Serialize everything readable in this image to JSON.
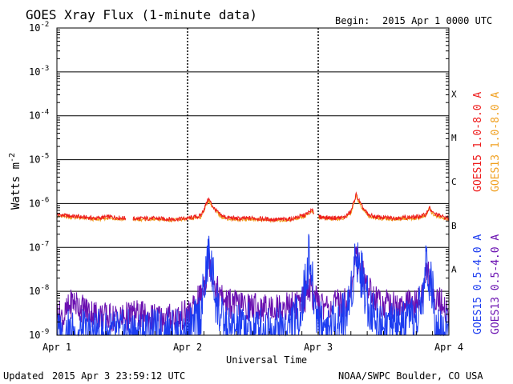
{
  "chart_data": {
    "type": "line",
    "title": "GOES Xray Flux (1-minute data)",
    "begin_label": "Begin:",
    "begin_value": "2015 Apr 1 0000 UTC",
    "xlabel": "Universal Time",
    "ylabel": "Watts m",
    "ylabel_sup": "-2",
    "y_scale": "log",
    "ylim": [
      1e-09,
      0.01
    ],
    "xlim": [
      0,
      3
    ],
    "x_tick_labels": [
      "Apr 1",
      "Apr 2",
      "Apr 3",
      "Apr 4"
    ],
    "x_ticks": [
      0,
      1,
      2,
      3
    ],
    "y_ticks": [
      {
        "value": 0.01,
        "base": "10",
        "exp": "-2"
      },
      {
        "value": 0.001,
        "base": "10",
        "exp": "-3"
      },
      {
        "value": 0.0001,
        "base": "10",
        "exp": "-4"
      },
      {
        "value": 1e-05,
        "base": "10",
        "exp": "-5"
      },
      {
        "value": 1e-06,
        "base": "10",
        "exp": "-6"
      },
      {
        "value": 1e-07,
        "base": "10",
        "exp": "-7"
      },
      {
        "value": 1e-08,
        "base": "10",
        "exp": "-8"
      },
      {
        "value": 1e-09,
        "base": "10",
        "exp": "-9"
      }
    ],
    "flare_classes": [
      {
        "label": "X",
        "min": 0.0001,
        "max": 0.001
      },
      {
        "label": "M",
        "min": 1e-05,
        "max": 0.0001
      },
      {
        "label": "C",
        "min": 1e-06,
        "max": 1e-05
      },
      {
        "label": "B",
        "min": 1e-07,
        "max": 1e-06
      },
      {
        "label": "A",
        "min": 1e-08,
        "max": 1e-07
      }
    ],
    "grid": true,
    "series": [
      {
        "name": "GOES15 1.0-8.0 A",
        "color": "#ee1c1c",
        "points": [
          [
            0,
            5.6e-07
          ],
          [
            0.1,
            5.2e-07
          ],
          [
            0.2,
            4.9e-07
          ],
          [
            0.3,
            4.6e-07
          ],
          [
            0.4,
            5e-07
          ],
          [
            0.5,
            4.7e-07
          ],
          [
            0.6,
            4.5e-07
          ],
          [
            0.7,
            4.6e-07
          ],
          [
            0.8,
            4.5e-07
          ],
          [
            0.9,
            4.4e-07
          ],
          [
            1.0,
            4.6e-07
          ],
          [
            1.05,
            4.9e-07
          ],
          [
            1.1,
            5.2e-07
          ],
          [
            1.13,
            8e-07
          ],
          [
            1.16,
            1.3e-06
          ],
          [
            1.2,
            8e-07
          ],
          [
            1.25,
            5.5e-07
          ],
          [
            1.3,
            4.8e-07
          ],
          [
            1.4,
            4.5e-07
          ],
          [
            1.5,
            4.7e-07
          ],
          [
            1.6,
            4.4e-07
          ],
          [
            1.7,
            4.3e-07
          ],
          [
            1.8,
            4.5e-07
          ],
          [
            1.9,
            5.5e-07
          ],
          [
            1.95,
            7e-07
          ],
          [
            2.0,
            5e-07
          ],
          [
            2.1,
            4.7e-07
          ],
          [
            2.2,
            4.8e-07
          ],
          [
            2.25,
            6.5e-07
          ],
          [
            2.29,
            1.6e-06
          ],
          [
            2.33,
            9e-07
          ],
          [
            2.38,
            5.5e-07
          ],
          [
            2.45,
            4.9e-07
          ],
          [
            2.55,
            4.7e-07
          ],
          [
            2.65,
            4.8e-07
          ],
          [
            2.75,
            4.9e-07
          ],
          [
            2.82,
            5.5e-07
          ],
          [
            2.85,
            8e-07
          ],
          [
            2.88,
            6e-07
          ],
          [
            2.95,
            5e-07
          ],
          [
            3.0,
            4.6e-07
          ]
        ],
        "gaps": [
          [
            0.53,
            0.58
          ],
          [
            1.97,
            2.0
          ]
        ]
      },
      {
        "name": "GOES13 1.0-8.0 A",
        "color": "#f0a020",
        "points": [
          [
            0,
            5.2e-07
          ],
          [
            0.1,
            4.9e-07
          ],
          [
            0.2,
            4.6e-07
          ],
          [
            0.3,
            4.3e-07
          ],
          [
            0.4,
            4.7e-07
          ],
          [
            0.5,
            4.4e-07
          ],
          [
            0.6,
            4.3e-07
          ],
          [
            0.7,
            4.4e-07
          ],
          [
            0.8,
            4.3e-07
          ],
          [
            0.9,
            4.2e-07
          ],
          [
            1.0,
            4.4e-07
          ],
          [
            1.05,
            4.6e-07
          ],
          [
            1.1,
            4.9e-07
          ],
          [
            1.13,
            7.5e-07
          ],
          [
            1.16,
            1.2e-06
          ],
          [
            1.2,
            7.6e-07
          ],
          [
            1.25,
            5.2e-07
          ],
          [
            1.3,
            4.5e-07
          ],
          [
            1.4,
            4.3e-07
          ],
          [
            1.5,
            4.4e-07
          ],
          [
            1.6,
            4.2e-07
          ],
          [
            1.7,
            4.1e-07
          ],
          [
            1.8,
            4.3e-07
          ],
          [
            1.9,
            5.2e-07
          ],
          [
            1.95,
            6.6e-07
          ],
          [
            2.0,
            4.8e-07
          ],
          [
            2.1,
            4.4e-07
          ],
          [
            2.2,
            4.6e-07
          ],
          [
            2.25,
            6.1e-07
          ],
          [
            2.29,
            1.5e-06
          ],
          [
            2.33,
            8.6e-07
          ],
          [
            2.38,
            5.2e-07
          ],
          [
            2.45,
            4.6e-07
          ],
          [
            2.55,
            4.4e-07
          ],
          [
            2.65,
            4.5e-07
          ],
          [
            2.75,
            4.6e-07
          ],
          [
            2.82,
            5.2e-07
          ],
          [
            2.85,
            7.6e-07
          ],
          [
            2.88,
            5.6e-07
          ],
          [
            2.95,
            4.7e-07
          ],
          [
            3.0,
            4.3e-07
          ]
        ],
        "gaps": [
          [
            0.53,
            0.58
          ],
          [
            1.97,
            2.0
          ]
        ]
      },
      {
        "name": "GOES15 0.5-4.0 A",
        "color": "#1c3cf0",
        "points": [
          [
            0,
            1e-09
          ],
          [
            0.2,
            1e-09
          ],
          [
            0.4,
            1e-09
          ],
          [
            0.6,
            1e-09
          ],
          [
            0.8,
            1e-09
          ],
          [
            0.95,
            1e-09
          ],
          [
            1.05,
            1.5e-09
          ],
          [
            1.1,
            3e-09
          ],
          [
            1.14,
            2e-08
          ],
          [
            1.16,
            7e-08
          ],
          [
            1.19,
            2.5e-08
          ],
          [
            1.22,
            6e-09
          ],
          [
            1.26,
            2e-09
          ],
          [
            1.3,
            1.2e-09
          ],
          [
            1.45,
            1.5e-09
          ],
          [
            1.6,
            1.2e-09
          ],
          [
            1.75,
            1.5e-09
          ],
          [
            1.85,
            2.5e-09
          ],
          [
            1.9,
            1.2e-08
          ],
          [
            1.93,
            7e-08
          ],
          [
            1.96,
            1e-08
          ],
          [
            2.0,
            2e-09
          ],
          [
            2.1,
            1.5e-09
          ],
          [
            2.22,
            3e-09
          ],
          [
            2.26,
            1.5e-08
          ],
          [
            2.29,
            8e-08
          ],
          [
            2.33,
            2.5e-08
          ],
          [
            2.38,
            6e-09
          ],
          [
            2.45,
            2e-09
          ],
          [
            2.55,
            1.5e-09
          ],
          [
            2.65,
            1.5e-09
          ],
          [
            2.75,
            2e-09
          ],
          [
            2.8,
            8e-09
          ],
          [
            2.83,
            5e-08
          ],
          [
            2.86,
            1.5e-08
          ],
          [
            2.9,
            3e-09
          ],
          [
            2.95,
            1.5e-09
          ],
          [
            3.0,
            1e-09
          ]
        ]
      },
      {
        "name": "GOES13 0.5-4.0 A",
        "color": "#6a10b0",
        "points": [
          [
            0,
            3e-09
          ],
          [
            0.05,
            2.5e-09
          ],
          [
            0.12,
            6e-09
          ],
          [
            0.2,
            4e-09
          ],
          [
            0.3,
            3e-09
          ],
          [
            0.4,
            2.5e-09
          ],
          [
            0.5,
            2.5e-09
          ],
          [
            0.6,
            3e-09
          ],
          [
            0.7,
            2.5e-09
          ],
          [
            0.8,
            2.5e-09
          ],
          [
            0.9,
            2.5e-09
          ],
          [
            1.0,
            3e-09
          ],
          [
            1.05,
            4e-09
          ],
          [
            1.1,
            8e-09
          ],
          [
            1.14,
            2e-08
          ],
          [
            1.16,
            6e-08
          ],
          [
            1.19,
            2.5e-08
          ],
          [
            1.22,
            1.2e-08
          ],
          [
            1.26,
            7e-09
          ],
          [
            1.3,
            5.5e-09
          ],
          [
            1.45,
            4.5e-09
          ],
          [
            1.6,
            4e-09
          ],
          [
            1.75,
            4.5e-09
          ],
          [
            1.85,
            5e-09
          ],
          [
            1.9,
            7e-09
          ],
          [
            1.93,
            1.5e-08
          ],
          [
            1.96,
            8e-09
          ],
          [
            2.0,
            5e-09
          ],
          [
            2.1,
            4.5e-09
          ],
          [
            2.22,
            6e-09
          ],
          [
            2.26,
            1.5e-08
          ],
          [
            2.29,
            7e-08
          ],
          [
            2.33,
            3e-08
          ],
          [
            2.38,
            1.2e-08
          ],
          [
            2.45,
            6e-09
          ],
          [
            2.55,
            5e-09
          ],
          [
            2.65,
            4.5e-09
          ],
          [
            2.75,
            5e-09
          ],
          [
            2.8,
            8e-09
          ],
          [
            2.83,
            3e-08
          ],
          [
            2.86,
            1.5e-08
          ],
          [
            2.9,
            7e-09
          ],
          [
            2.95,
            5e-09
          ],
          [
            3.0,
            3e-09
          ]
        ]
      }
    ]
  },
  "footer": {
    "updated_label": "Updated",
    "updated_value": "2015 Apr  3 23:59:12 UTC",
    "credit": "NOAA/SWPC Boulder, CO USA"
  }
}
